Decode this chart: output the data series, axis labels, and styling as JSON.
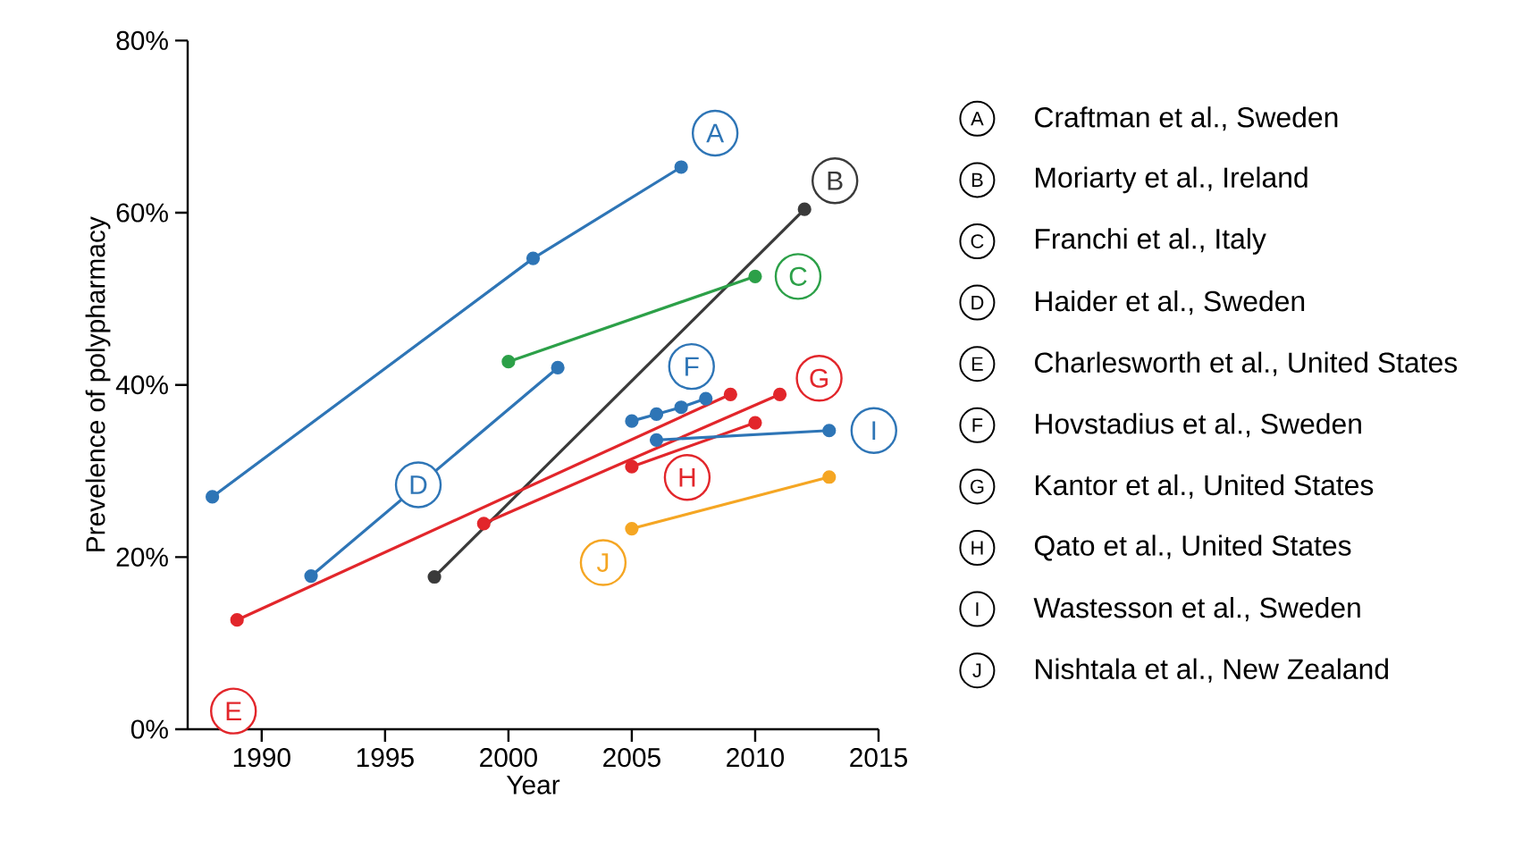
{
  "chart_data": {
    "type": "line",
    "xlabel": "Year",
    "ylabel": "Prevelence of polypharmacy",
    "xlim": [
      1987,
      2015
    ],
    "xticks": [
      1990,
      1995,
      2000,
      2005,
      2010,
      2015
    ],
    "ylim": [
      0,
      80
    ],
    "yticks": [
      {
        "value": 0,
        "label": "0%"
      },
      {
        "value": 20,
        "label": "20%"
      },
      {
        "value": 40,
        "label": "40%"
      },
      {
        "value": 60,
        "label": "60%"
      },
      {
        "value": 80,
        "label": "80%"
      }
    ],
    "marker": "circle",
    "line_style": "solid",
    "legend": "right",
    "series": [
      {
        "name": "A",
        "color": "#2e75b6",
        "x": [
          1988,
          2001,
          2007
        ],
        "values": [
          27,
          54.7,
          65.3
        ]
      },
      {
        "name": "B",
        "color": "#3a3a3a",
        "x": [
          1997,
          2012
        ],
        "values": [
          17.7,
          60.4
        ]
      },
      {
        "name": "C",
        "color": "#2ca048",
        "x": [
          2000,
          2010
        ],
        "values": [
          42.7,
          52.6
        ]
      },
      {
        "name": "D",
        "color": "#2e75b6",
        "x": [
          1992,
          2002
        ],
        "values": [
          17.8,
          42
        ]
      },
      {
        "name": "E",
        "color": "#e2262b",
        "x": [
          1989,
          2009
        ],
        "values": [
          12.7,
          38.9
        ]
      },
      {
        "name": "F",
        "color": "#2e75b6",
        "x": [
          2005,
          2006,
          2007,
          2008
        ],
        "values": [
          35.8,
          36.6,
          37.4,
          38.4
        ]
      },
      {
        "name": "G",
        "color": "#e2262b",
        "x": [
          1999,
          2011
        ],
        "values": [
          23.9,
          38.9
        ]
      },
      {
        "name": "H",
        "color": "#e2262b",
        "x": [
          2005,
          2010
        ],
        "values": [
          30.5,
          35.6
        ]
      },
      {
        "name": "I",
        "color": "#2e75b6",
        "x": [
          2006,
          2013
        ],
        "values": [
          33.6,
          34.7
        ]
      },
      {
        "name": "J",
        "color": "#f5a623",
        "x": [
          2005,
          2013
        ],
        "values": [
          23.3,
          29.3
        ]
      }
    ],
    "annotations": [
      "Craftman et al., Sweden",
      "Moriarty et al., Ireland",
      "Franchi et al., Italy",
      "Haider et al., Sweden",
      "Charlesworth et al., United States",
      "Hovstadius et al., Sweden",
      "Kantor et al., United States",
      "Qato et al., United States",
      "Wastesson et al., Sweden",
      "Nishtala et al., New Zealand"
    ]
  }
}
